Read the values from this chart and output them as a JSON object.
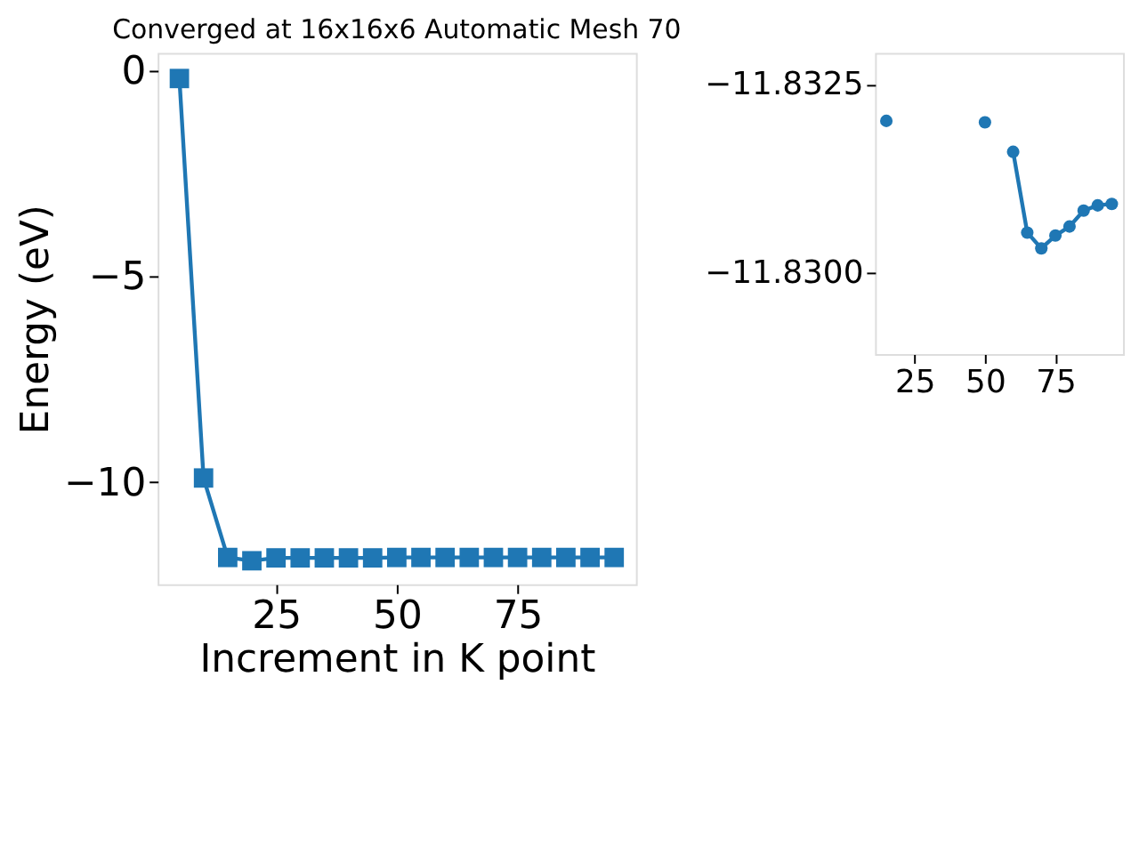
{
  "chart_data": [
    {
      "type": "line",
      "title": "Converged at 16x16x6 Automatic Mesh 70",
      "xlabel": "Increment in K point",
      "ylabel": "Energy (eV)",
      "x": [
        5,
        10,
        15,
        20,
        25,
        30,
        35,
        40,
        45,
        50,
        55,
        60,
        65,
        70,
        75,
        80,
        85,
        90,
        95
      ],
      "series": [
        {
          "color": "#1f77b4",
          "values": [
            -0.2,
            -9.9,
            -11.83,
            -11.91,
            -11.84,
            -11.84,
            -11.84,
            -11.84,
            -11.84,
            -11.83,
            -11.83,
            -11.83,
            -11.83,
            -11.83,
            -11.83,
            -11.83,
            -11.83,
            -11.83,
            -11.83
          ]
        }
      ],
      "xlim": [
        0.5,
        99.5
      ],
      "ylim": [
        -12.48,
        0.42
      ],
      "xticks": [
        25,
        50,
        75
      ],
      "yticks": [
        {
          "value": -10,
          "label": "−10"
        },
        {
          "value": -5,
          "label": "−5"
        },
        {
          "value": 0,
          "label": "0"
        }
      ],
      "marker": "square",
      "grid": false
    },
    {
      "type": "line",
      "x": [
        15,
        20,
        25,
        30,
        35,
        40,
        45,
        50,
        55,
        60,
        65,
        70,
        75,
        80,
        85,
        90,
        95
      ],
      "series": [
        {
          "color": "#1f77b4",
          "values": [
            -11.83202,
            null,
            null,
            null,
            null,
            null,
            null,
            -11.832,
            null,
            -11.83161,
            -11.83054,
            -11.83033,
            -11.8305,
            -11.83062,
            -11.83083,
            -11.8309,
            -11.83092
          ]
        }
      ],
      "xlim": [
        11,
        99
      ],
      "ylim": [
        -11.82893,
        -11.83292
      ],
      "xticks": [
        25,
        50,
        75
      ],
      "yticks": [
        {
          "value": -11.8325,
          "label": "−11.8325"
        },
        {
          "value": -11.83,
          "label": "−11.8300"
        }
      ],
      "marker": "circle",
      "grid": false
    }
  ]
}
